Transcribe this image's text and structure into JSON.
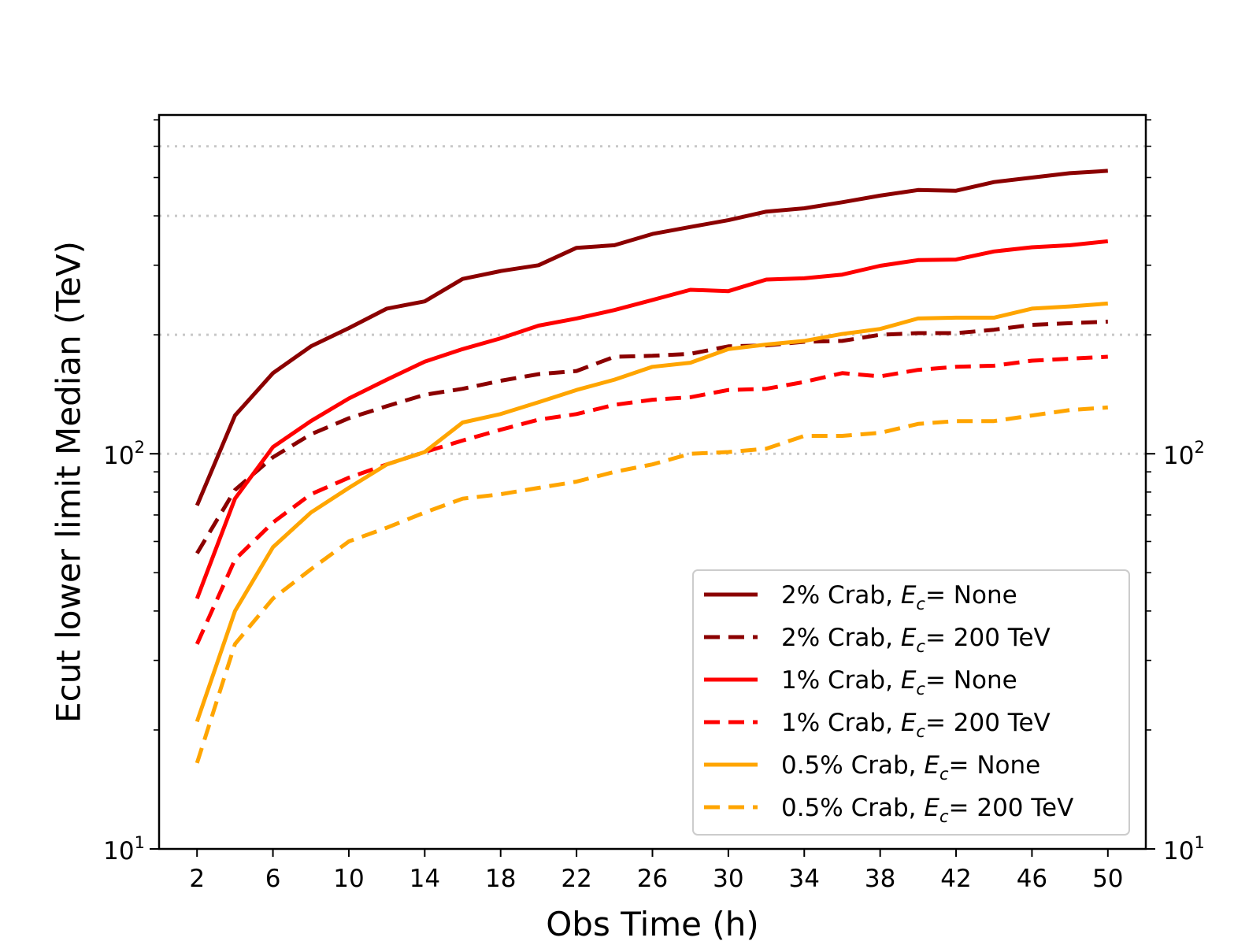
{
  "chart_data": {
    "type": "line",
    "xlabel": "Obs Time (h)",
    "ylabel": "Ecut lower limit Median (TeV)",
    "yscale": "log",
    "xlim": [
      0,
      52
    ],
    "ylim": [
      10,
      720
    ],
    "x_ticks": [
      2,
      6,
      10,
      14,
      18,
      22,
      26,
      30,
      34,
      38,
      42,
      46,
      50
    ],
    "x_tick_labels": [
      "2",
      "6",
      "10",
      "14",
      "18",
      "22",
      "26",
      "30",
      "34",
      "38",
      "42",
      "46",
      "50"
    ],
    "y_ticks": [
      10,
      100
    ],
    "y_tick_labels": [
      {
        "base": "10",
        "exp": "1"
      },
      {
        "base": "10",
        "exp": "2"
      }
    ],
    "y_minor_ticks": [
      20,
      30,
      40,
      50,
      60,
      70,
      80,
      90,
      200,
      300,
      400,
      500,
      600,
      700
    ],
    "gridlines_y": [
      100,
      200,
      400,
      600
    ],
    "grid": "horizontal dotted",
    "legend_position": "lower-right",
    "x": [
      2,
      4,
      6,
      8,
      10,
      12,
      14,
      16,
      18,
      20,
      22,
      24,
      26,
      28,
      30,
      32,
      34,
      36,
      38,
      40,
      42,
      44,
      46,
      48,
      50
    ],
    "series": [
      {
        "name_prefix": "2% Crab, ",
        "name_symbol": "E",
        "name_sub": "c",
        "name_suffix": "= None",
        "color": "#8B0000",
        "dash": "solid",
        "values": [
          74,
          125,
          160,
          187,
          208,
          233,
          243,
          277,
          290,
          300,
          332,
          337,
          360,
          375,
          390,
          410,
          418,
          433,
          450,
          465,
          463,
          487,
          500,
          513,
          520
        ]
      },
      {
        "name_prefix": "2% Crab, ",
        "name_symbol": "E",
        "name_sub": "c",
        "name_suffix": "= 200 TeV",
        "color": "#8B0000",
        "dash": "dashed",
        "values": [
          56,
          81,
          98,
          112,
          123,
          132,
          141,
          146,
          153,
          159,
          162,
          176,
          177,
          179,
          187,
          188,
          192,
          193,
          200,
          202,
          202,
          206,
          212,
          214,
          216
        ]
      },
      {
        "name_prefix": "1% Crab, ",
        "name_symbol": "E",
        "name_sub": "c",
        "name_suffix": "= None",
        "color": "#FF0000",
        "dash": "solid",
        "values": [
          43,
          77,
          104,
          121,
          138,
          154,
          171,
          184,
          196,
          211,
          220,
          231,
          245,
          260,
          258,
          276,
          278,
          284,
          299,
          309,
          310,
          325,
          333,
          337,
          345
        ]
      },
      {
        "name_prefix": "1% Crab, ",
        "name_symbol": "E",
        "name_sub": "c",
        "name_suffix": "= 200 TeV",
        "color": "#FF0000",
        "dash": "dashed",
        "values": [
          33,
          54,
          67,
          79,
          87,
          94,
          101,
          108,
          115,
          122,
          126,
          133,
          137,
          139,
          145,
          146,
          152,
          160,
          157,
          163,
          166,
          167,
          172,
          174,
          176
        ]
      },
      {
        "name_prefix": "0.5% Crab, ",
        "name_symbol": "E",
        "name_sub": "c",
        "name_suffix": "= None",
        "color": "#FFA500",
        "dash": "solid",
        "values": [
          21,
          40,
          58,
          71,
          82,
          94,
          101,
          120,
          126,
          135,
          145,
          154,
          166,
          170,
          184,
          189,
          193,
          201,
          207,
          220,
          221,
          221,
          233,
          236,
          240
        ]
      },
      {
        "name_prefix": "0.5% Crab, ",
        "name_symbol": "E",
        "name_sub": "c",
        "name_suffix": "= 200 TeV",
        "color": "#FFA500",
        "dash": "dashed",
        "values": [
          16.5,
          33,
          43,
          51,
          60,
          65,
          71,
          77,
          79,
          82,
          85,
          90,
          94,
          100,
          101,
          103,
          111,
          111,
          113,
          119,
          121,
          121,
          125,
          129,
          131
        ]
      }
    ]
  }
}
